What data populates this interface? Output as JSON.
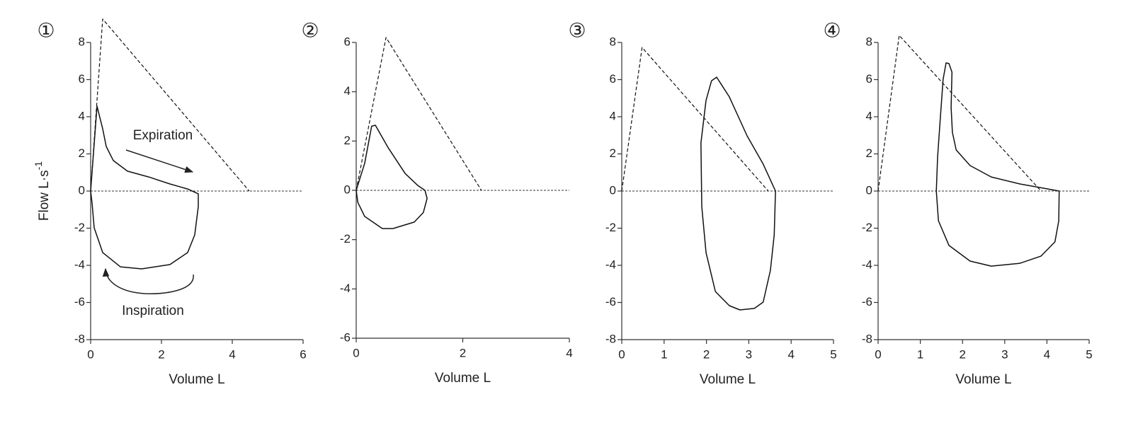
{
  "chart_data": [
    {
      "type": "line",
      "label": "①",
      "xlabel": "Volume L",
      "ylabel": "Flow L·s",
      "ylabel_superscript": "-1",
      "xlim": [
        0,
        6
      ],
      "ylim": [
        -8,
        8
      ],
      "xticks": [
        0,
        2,
        4,
        6
      ],
      "yticks": [
        -8,
        -6,
        -4,
        -2,
        0,
        2,
        4,
        6,
        8
      ],
      "hline": 0,
      "annotations": [
        "Expiration",
        "Inspiration"
      ],
      "series": [
        {
          "color": "#111",
          "dash": false,
          "x": [
            0,
            0.18,
            0.34,
            0.44,
            0.64,
            1.04,
            1.64,
            2.24,
            2.74,
            3.04,
            3.04,
            2.94,
            2.74,
            2.24,
            1.44,
            0.84,
            0.34,
            0.1,
            0.04,
            0
          ],
          "values": [
            0,
            4.57,
            3.35,
            2.4,
            1.64,
            1.07,
            0.76,
            0.38,
            0.11,
            -0.15,
            -0.84,
            -2.36,
            -3.31,
            -3.96,
            -4.19,
            -4.08,
            -3.31,
            -1.98,
            -0.65,
            0
          ]
        },
        {
          "color": "#111",
          "dash": true,
          "x": [
            0,
            0.34,
            4.48
          ],
          "values": [
            0,
            9.26,
            0
          ]
        }
      ]
    },
    {
      "type": "line",
      "label": "②",
      "xlabel": "Volume L",
      "xlim": [
        0,
        4
      ],
      "ylim": [
        -6,
        6
      ],
      "xticks": [
        0,
        2,
        4
      ],
      "yticks": [
        -6,
        -4,
        -2,
        0,
        2,
        4,
        6
      ],
      "hline": 0,
      "series": [
        {
          "color": "#111",
          "dash": false,
          "x": [
            0,
            0.16,
            0.29,
            0.36,
            0.6,
            0.92,
            1.16,
            1.29,
            1.33,
            1.26,
            1.09,
            0.69,
            0.49,
            0.16,
            0.03,
            0
          ],
          "values": [
            0,
            1.1,
            2.6,
            2.64,
            1.73,
            0.68,
            0.19,
            0,
            -0.33,
            -0.9,
            -1.29,
            -1.55,
            -1.55,
            -1.06,
            -0.49,
            0
          ]
        },
        {
          "color": "#111",
          "dash": true,
          "x": [
            0,
            0.56,
            2.35
          ],
          "values": [
            0,
            6.2,
            0
          ]
        }
      ]
    },
    {
      "type": "line",
      "label": "③",
      "xlabel": "Volume L",
      "xlim": [
        0,
        5
      ],
      "ylim": [
        -8,
        8
      ],
      "xticks": [
        0,
        1,
        2,
        3,
        4,
        5
      ],
      "yticks": [
        -8,
        -6,
        -4,
        -2,
        0,
        2,
        4,
        6,
        8
      ],
      "hline": 0,
      "series": [
        {
          "color": "#111",
          "dash": false,
          "x": [
            3.63,
            3.34,
            2.96,
            2.54,
            2.24,
            2.12,
            1.99,
            1.87,
            1.89,
            1.99,
            2.21,
            2.54,
            2.79,
            3.13,
            3.34,
            3.51,
            3.6,
            3.63
          ],
          "values": [
            0,
            1.45,
            2.97,
            5.07,
            6.13,
            5.94,
            4.88,
            2.59,
            -0.84,
            -3.31,
            -5.41,
            -6.17,
            -6.4,
            -6.32,
            -5.98,
            -4.27,
            -2.36,
            0
          ]
        },
        {
          "color": "#111",
          "dash": true,
          "x": [
            0,
            0.48,
            3.46
          ],
          "values": [
            0,
            7.73,
            0
          ]
        }
      ]
    },
    {
      "type": "line",
      "label": "④",
      "xlabel": "Volume L",
      "xlim": [
        0,
        5
      ],
      "ylim": [
        -8,
        8
      ],
      "xticks": [
        0,
        1,
        2,
        3,
        4,
        5
      ],
      "yticks": [
        -8,
        -6,
        -4,
        -2,
        0,
        2,
        4,
        6,
        8
      ],
      "hline": 0,
      "series": [
        {
          "color": "#111",
          "dash": false,
          "x": [
            4.29,
            3.83,
            3.36,
            2.68,
            2.18,
            1.85,
            1.76,
            1.73,
            1.75,
            1.68,
            1.61,
            1.54,
            1.48,
            1.41,
            1.38,
            1.43,
            1.68,
            2.18,
            2.68,
            3.36,
            3.86,
            4.19,
            4.28,
            4.29
          ],
          "values": [
            0,
            0.19,
            0.38,
            0.76,
            1.37,
            2.21,
            3.16,
            4.5,
            6.4,
            6.86,
            6.9,
            6.02,
            4.11,
            1.83,
            0,
            -1.6,
            -2.93,
            -3.77,
            -4.04,
            -3.89,
            -3.5,
            -2.74,
            -1.6,
            0
          ]
        },
        {
          "color": "#111",
          "dash": true,
          "x": [
            0,
            0.5,
            3.86
          ],
          "values": [
            0,
            8.38,
            0
          ]
        }
      ]
    }
  ]
}
